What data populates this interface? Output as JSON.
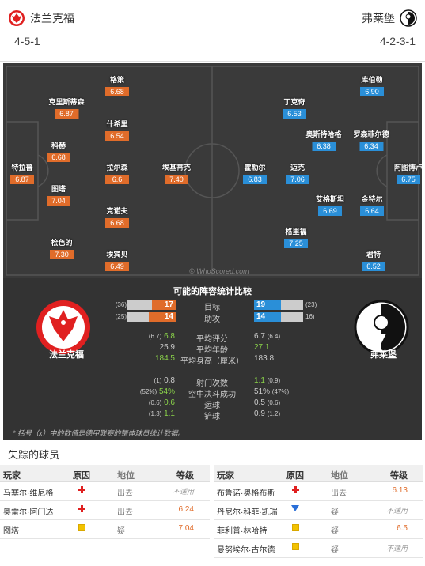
{
  "header": {
    "home_name": "法兰克福",
    "away_name": "弗莱堡",
    "home_formation": "4-5-1",
    "away_formation": "4-2-3-1",
    "home_color": "#e02020",
    "away_color": "#111111"
  },
  "pitch": {
    "watermark": "© WhoScored.com",
    "home_players": [
      {
        "name": "特拉普",
        "rating": "6.87"
      },
      {
        "name": "克里斯蒂森",
        "rating": "6.87"
      },
      {
        "name": "科赫",
        "rating": "6.68"
      },
      {
        "name": "图塔",
        "rating": "7.04"
      },
      {
        "name": "桧色的",
        "rating": "7.30"
      },
      {
        "name": "格策",
        "rating": "6.68"
      },
      {
        "name": "什希里",
        "rating": "6.54"
      },
      {
        "name": "拉尔森",
        "rating": "6.6"
      },
      {
        "name": "克诺夫",
        "rating": "6.68"
      },
      {
        "name": "埃宾贝",
        "rating": "6.49"
      },
      {
        "name": "埃基蒂克",
        "rating": "7.40"
      }
    ],
    "away_players": [
      {
        "name": "库伯勒",
        "rating": "6.90"
      },
      {
        "name": "丁克奇",
        "rating": "6.53"
      },
      {
        "name": "奥斯特哈格",
        "rating": "6.38"
      },
      {
        "name": "罗森菲尔德",
        "rating": "6.34"
      },
      {
        "name": "阿图博卢",
        "rating": "6.75"
      },
      {
        "name": "霍勒尔",
        "rating": "6.83"
      },
      {
        "name": "迈克",
        "rating": "7.06"
      },
      {
        "name": "艾格斯坦",
        "rating": "6.69"
      },
      {
        "name": "金特尔",
        "rating": "6.64"
      },
      {
        "name": "格里福",
        "rating": "7.25"
      },
      {
        "name": "君特",
        "rating": "6.52"
      }
    ]
  },
  "stats": {
    "title": "可能的阵容统计比较",
    "home_name": "法兰克福",
    "away_name": "弗莱堡",
    "goals": {
      "label": "目标",
      "home": 17,
      "home_total": "(36)",
      "away": 19,
      "away_total": "(23)"
    },
    "assists": {
      "label": "助攻",
      "home": 14,
      "home_total": "(25)",
      "away": 14,
      "away_total": "16)"
    },
    "rows": [
      {
        "label": "平均评分",
        "home_small": "(6.7)",
        "home": "6.8",
        "home_green": true,
        "away": "6.7",
        "away_small": "(6.4)",
        "away_green": false
      },
      {
        "label": "平均年龄",
        "home_small": "",
        "home": "25.9",
        "home_green": false,
        "away": "27.1",
        "away_small": "",
        "away_green": true
      },
      {
        "label": "平均身高（厘米）",
        "home_small": "",
        "home": "184.5",
        "home_green": true,
        "away": "183.8",
        "away_small": "",
        "away_green": false
      },
      {
        "label": "射门次数",
        "home_small": "(1)",
        "home": "0.8",
        "home_green": false,
        "away": "1.1",
        "away_small": "(0.9)",
        "away_green": true
      },
      {
        "label": "空中决斗成功",
        "home_small": "(52%)",
        "home": "54%",
        "home_green": true,
        "away": "51%",
        "away_small": "(47%)",
        "away_green": false
      },
      {
        "label": "运球",
        "home_small": "(0.6)",
        "home": "0.6",
        "home_green": true,
        "away": "0.5",
        "away_small": "(0.6)",
        "away_green": false
      },
      {
        "label": "铲球",
        "home_small": "(1.3)",
        "home": "1.1",
        "home_green": true,
        "away": "0.9",
        "away_small": "(1.2)",
        "away_green": false
      }
    ],
    "footnote": "* 括号（x）中的数值是德甲联赛的整体球员统计数据。"
  },
  "missing": {
    "title": "失踪的球员",
    "headers": {
      "player": "玩家",
      "reason": "原因",
      "status": "地位",
      "rating": "等级"
    },
    "home": [
      {
        "name": "马塞尔·维尼格",
        "reason": "injury",
        "status": "出去",
        "rating": "不适用"
      },
      {
        "name": "奥雷尔·阿门达",
        "reason": "injury",
        "status": "出去",
        "rating": "6.24"
      },
      {
        "name": "图塔",
        "reason": "doubt",
        "status": "疑",
        "rating": "7.04"
      }
    ],
    "away": [
      {
        "name": "布鲁诺·奥格布斯",
        "reason": "injury",
        "status": "出去",
        "rating": "6.13"
      },
      {
        "name": "丹尼尔·科菲·凯瑞",
        "reason": "down",
        "status": "疑",
        "rating": "不适用"
      },
      {
        "name": "菲利普·林哈特",
        "reason": "doubt",
        "status": "疑",
        "rating": "6.5"
      },
      {
        "name": "曼努埃尔·古尔德",
        "reason": "doubt",
        "status": "疑",
        "rating": "不适用"
      }
    ]
  }
}
